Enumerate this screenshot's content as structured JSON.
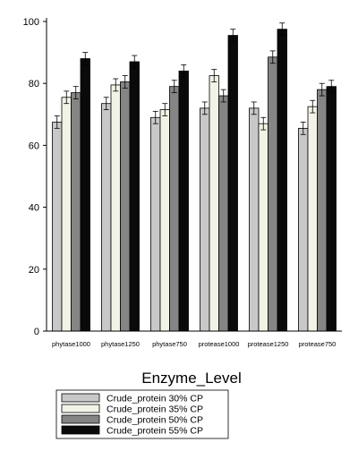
{
  "chart_data": {
    "type": "bar",
    "title": "",
    "xlabel": "Enzyme_Level",
    "ylabel": "",
    "ylim": [
      0,
      100
    ],
    "yticks": [
      0,
      20,
      40,
      60,
      80,
      100
    ],
    "grid": false,
    "legend_position": "bottom",
    "categories": [
      "phytase1000",
      "phytase1250",
      "phytase750",
      "protease1000",
      "protease1250",
      "protease750"
    ],
    "series": [
      {
        "name": "Crude_protein 30% CP",
        "color": "#c8c8c8",
        "values": [
          67.5,
          73.5,
          69,
          72,
          72,
          65.5
        ],
        "errors": [
          2,
          2,
          2,
          2,
          2,
          2
        ]
      },
      {
        "name": "Crude_protein 35% CP",
        "color": "#f2f2e6",
        "values": [
          75.5,
          79.5,
          71.5,
          82.5,
          67,
          72.5
        ],
        "errors": [
          2,
          2,
          2,
          2,
          2,
          2
        ]
      },
      {
        "name": "Crude_protein 50% CP",
        "color": "#858585",
        "values": [
          77,
          80.5,
          79,
          76,
          88.5,
          78
        ],
        "errors": [
          2,
          2,
          2,
          2,
          2,
          2
        ]
      },
      {
        "name": "Crude_protein 55% CP",
        "color": "#0a0a0a",
        "values": [
          88,
          87,
          84,
          95.5,
          97.5,
          79
        ],
        "errors": [
          2,
          2,
          2,
          2,
          2,
          2
        ]
      }
    ]
  }
}
